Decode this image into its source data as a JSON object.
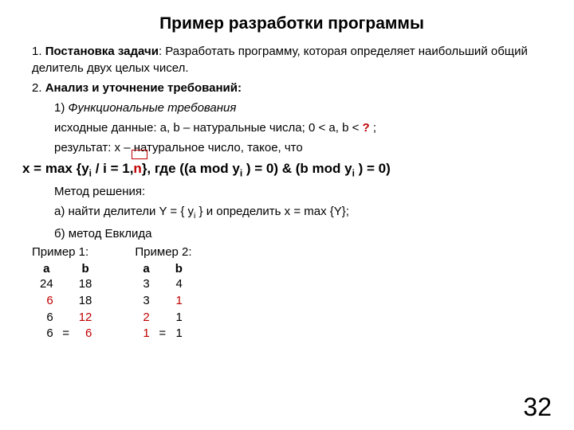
{
  "title": "Пример разработки программы",
  "p1_lead": "1. ",
  "p1_bold": "Постановка задачи",
  "p1_rest": ": Разработать программу, которая определяет наибольший общий делитель двух целых чисел.",
  "p2_lead": "2. ",
  "p2_bold": "Анализ и уточнение требований:",
  "p2_1_lead": "1) ",
  "p2_1_italic": "Функциональные требования",
  "p2_data_a": "исходные данные: a, b – натуральные числа; 0 < a, b < ",
  "p2_data_q": "?",
  "p2_data_b": " ;",
  "p2_result": "результат: x – натуральное число, такое, что",
  "formula_a": "x = max {y",
  "formula_i1": "i",
  "formula_b": " / i = 1,",
  "formula_n": "n",
  "formula_c": "}, где ((a mod y",
  "formula_i2": "i",
  "formula_d": " ) = 0) & (b mod y",
  "formula_i3": "i",
  "formula_e": " ) = 0)",
  "method": "Метод решения:",
  "method_a_1": "а) найти делители Y = { y",
  "method_a_i": "i",
  "method_a_2": " } и определить x = max {Y};",
  "method_b": "б) метод Евклида",
  "ex1_title": "Пример 1:",
  "ex1_h_a": "a",
  "ex1_h_b": "b",
  "ex1_r1_a": "24",
  "ex1_r1_b": "18",
  "ex1_r2_a": "6",
  "ex1_r2_b": "18",
  "ex1_r3_a": "6",
  "ex1_r3_b": "12",
  "ex1_r4_a": "6",
  "ex1_r4_eq": "=",
  "ex1_r4_b": "6",
  "ex2_title": "Пример 2:",
  "ex2_h_a": "a",
  "ex2_h_b": "b",
  "ex2_r1_a": "3",
  "ex2_r1_b": "4",
  "ex2_r2_a": "3",
  "ex2_r2_b": "1",
  "ex2_r3_a": "2",
  "ex2_r3_b": "1",
  "ex2_r4_a": "1",
  "ex2_r4_eq": "=",
  "ex2_r4_b": "1",
  "pagenum": "32",
  "colors": {
    "highlight": "#c00000",
    "text": "#000000",
    "bg": "#ffffff"
  }
}
